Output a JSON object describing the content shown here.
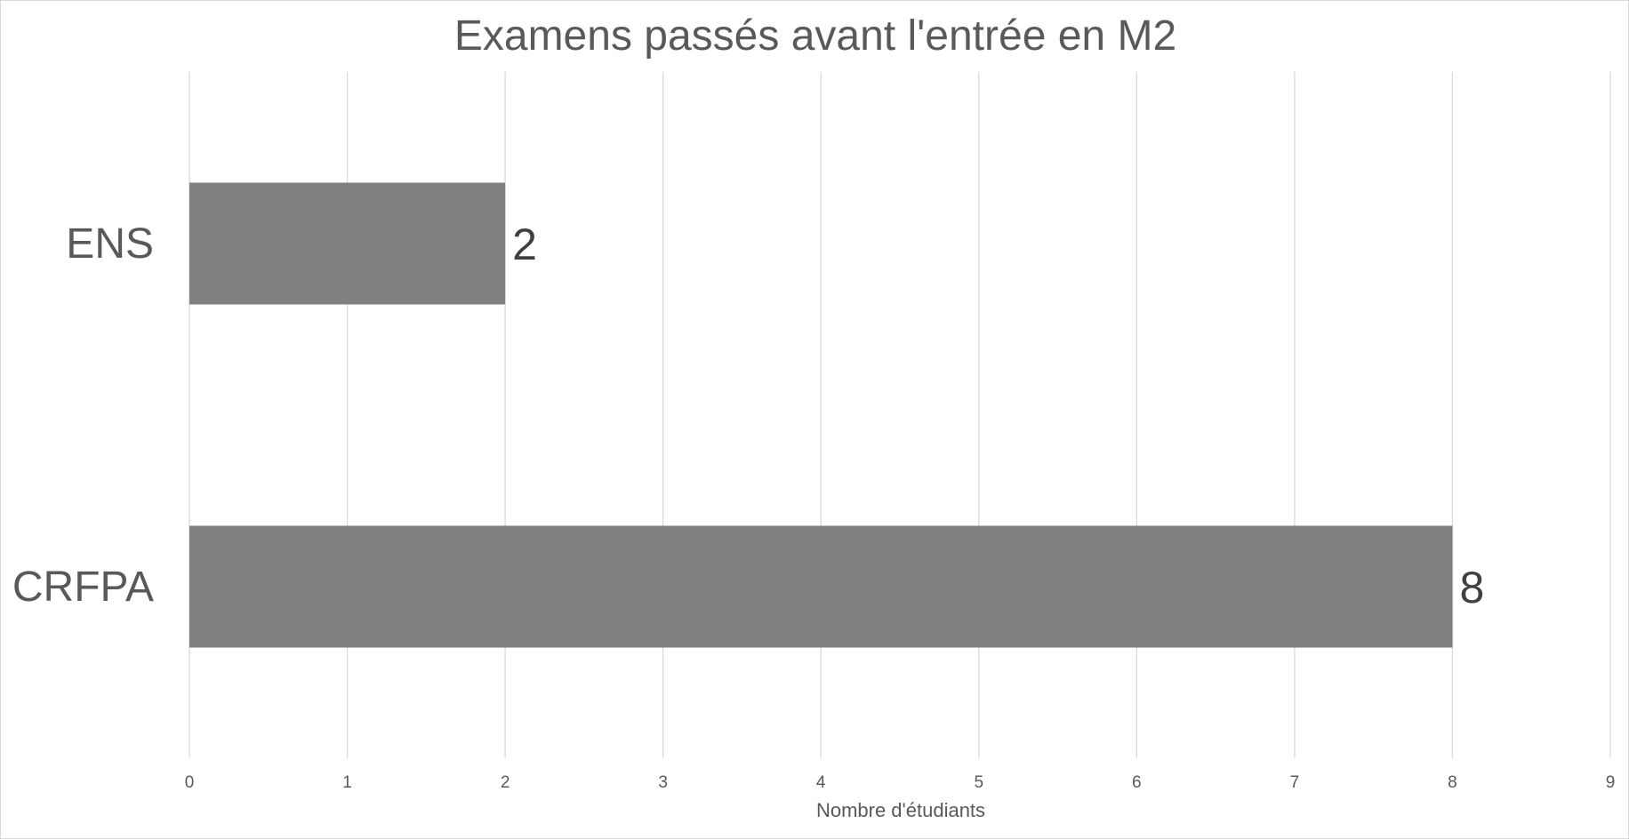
{
  "chart_data": {
    "type": "bar",
    "orientation": "horizontal",
    "title": "Examens passés avant l'entrée en M2",
    "xlabel": "Nombre d'étudiants",
    "ylabel": "",
    "categories": [
      "ENS",
      "CRFPA"
    ],
    "values": [
      2,
      8
    ],
    "data_labels": [
      "2",
      "8"
    ],
    "xlim": [
      0,
      9
    ],
    "x_ticks": [
      "0",
      "1",
      "2",
      "3",
      "4",
      "5",
      "6",
      "7",
      "8",
      "9"
    ],
    "grid": "vertical",
    "legend": "none",
    "bar_color": "#808080",
    "gridline_color": "#d9d9d9",
    "text_color": "#595959"
  }
}
